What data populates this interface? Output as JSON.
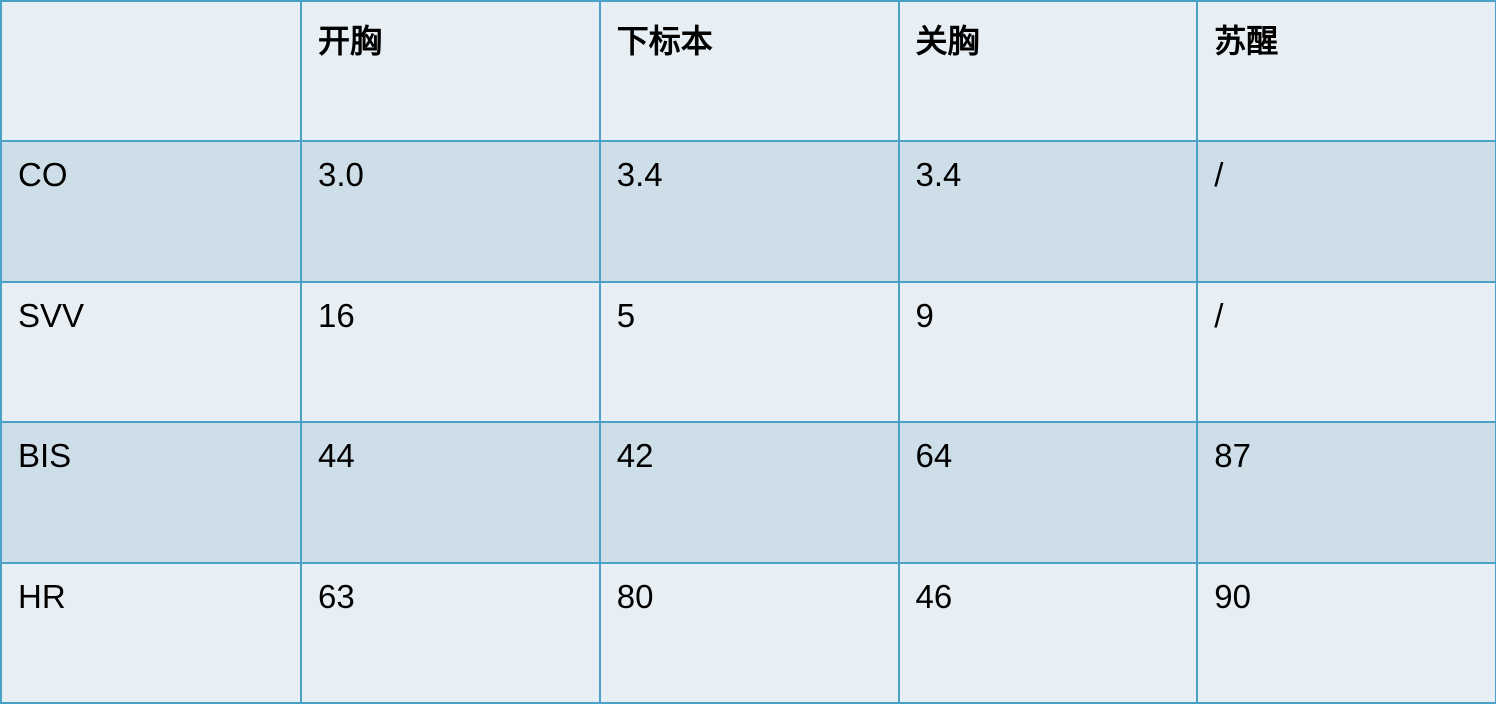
{
  "table": {
    "headers": [
      "",
      "开胸",
      "下标本",
      "关胸",
      "苏醒"
    ],
    "rows": [
      [
        "CO",
        "3.0",
        "3.4",
        "3.4",
        "/"
      ],
      [
        "SVV",
        "16",
        "5",
        "9",
        "/"
      ],
      [
        "BIS",
        "44",
        "42",
        "64",
        "87"
      ],
      [
        "HR",
        "63",
        "80",
        "46",
        "90"
      ]
    ]
  },
  "colors": {
    "border": "#4aa3c6",
    "row_light": "#e8eff4",
    "row_dark": "#cddee8"
  }
}
